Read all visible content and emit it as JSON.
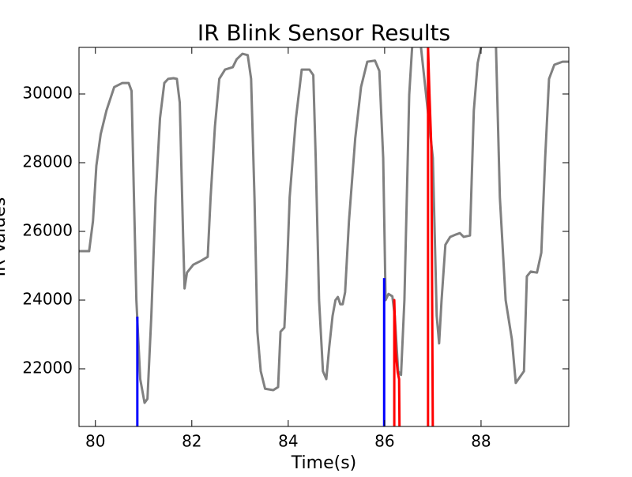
{
  "chart_data": {
    "type": "line",
    "title": "IR Blink Sensor Results",
    "xlabel": "Time(s)",
    "ylabel": "IR Values",
    "xlim": [
      79.66,
      89.82
    ],
    "ylim": [
      20322,
      31356
    ],
    "xticks": [
      80,
      82,
      84,
      86,
      88
    ],
    "yticks": [
      22000,
      24000,
      26000,
      28000,
      30000
    ],
    "series": [
      {
        "color": "#808080",
        "x": [
          79.66,
          79.87,
          79.95,
          80.02,
          80.11,
          80.23,
          80.39,
          80.56,
          80.69,
          80.75,
          80.8,
          80.85,
          80.93,
          81.02,
          81.08,
          81.16,
          81.25,
          81.34,
          81.43,
          81.51,
          81.62,
          81.69,
          81.75,
          81.82,
          81.85,
          81.9,
          82.03,
          82.2,
          82.33,
          82.39,
          82.48,
          82.57,
          82.69,
          82.85,
          82.93,
          83.05,
          83.16,
          83.23,
          83.3,
          83.36,
          83.43,
          83.52,
          83.69,
          83.79,
          83.84,
          83.92,
          83.97,
          84.03,
          84.16,
          84.28,
          84.44,
          84.52,
          84.57,
          84.64,
          84.72,
          84.79,
          84.85,
          84.92,
          84.98,
          85.03,
          85.08,
          85.13,
          85.18,
          85.26,
          85.39,
          85.51,
          85.64,
          85.8,
          85.89,
          85.97,
          86.02,
          86.08,
          86.16,
          86.21,
          86.28,
          86.34,
          86.41,
          86.46,
          86.51,
          86.57,
          86.72,
          87.0,
          87.08,
          87.13,
          87.18,
          87.26,
          87.36,
          87.48,
          87.56,
          87.64,
          87.77,
          87.85,
          87.93,
          88.05,
          88.31,
          88.39,
          88.51,
          88.64,
          88.72,
          88.8,
          88.89,
          88.95,
          89.03,
          89.16,
          89.25,
          89.33,
          89.41,
          89.52,
          89.69,
          89.82
        ],
        "values": [
          25425,
          25425,
          26300,
          27910,
          28830,
          29520,
          30200,
          30320,
          30320,
          30090,
          26990,
          24000,
          21700,
          21010,
          21125,
          23540,
          26990,
          29290,
          30320,
          30440,
          30460,
          30440,
          29750,
          25840,
          24340,
          24800,
          25030,
          25150,
          25260,
          26990,
          29060,
          30440,
          30710,
          30780,
          31010,
          31170,
          31130,
          30440,
          26990,
          23080,
          21930,
          21420,
          21380,
          21470,
          23080,
          23200,
          24690,
          26990,
          29290,
          30710,
          30710,
          30550,
          28140,
          24000,
          21930,
          21700,
          22620,
          23540,
          24000,
          24090,
          23880,
          23880,
          24230,
          26300,
          28710,
          30200,
          30940,
          30970,
          30670,
          28140,
          24000,
          24180,
          24110,
          23540,
          21930,
          21820,
          24000,
          26990,
          29980,
          31360,
          31800,
          28140,
          23540,
          22740,
          23980,
          25610,
          25840,
          25910,
          25950,
          25840,
          25880,
          29520,
          30900,
          31700,
          31360,
          26990,
          24000,
          22850,
          21590,
          21750,
          21930,
          24690,
          24830,
          24800,
          25380,
          28140,
          30440,
          30850,
          30940,
          30940
        ]
      },
      {
        "color": "#0000ff",
        "x": [
          80.87,
          80.87,
          null,
          85.99,
          85.99
        ],
        "values": [
          20000,
          23520,
          null,
          20000,
          24640
        ]
      },
      {
        "color": "#ff0000",
        "x": [
          86.2,
          86.2,
          86.23,
          86.27,
          86.3,
          86.31,
          null,
          86.9,
          86.9,
          86.93,
          86.97,
          87.0
        ],
        "values": [
          20000,
          24000,
          22500,
          21900,
          21700,
          20000,
          null,
          20000,
          31400,
          30000,
          28400,
          20000
        ]
      }
    ]
  }
}
